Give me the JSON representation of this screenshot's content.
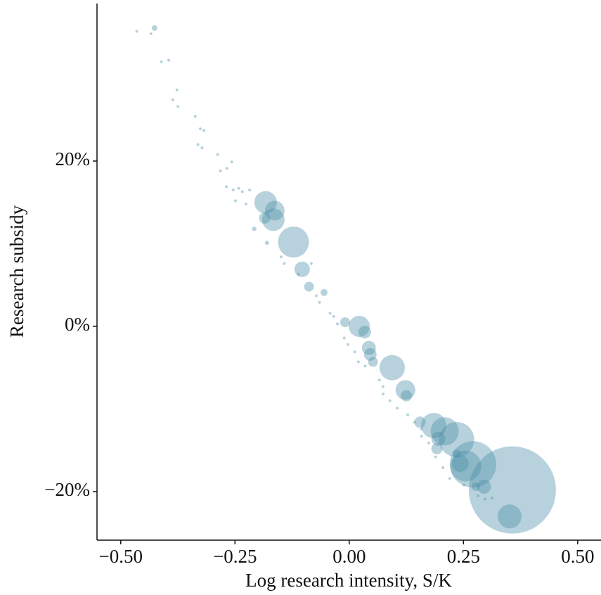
{
  "chart_data": {
    "type": "bubble",
    "x_label": "Log research intensity, S/K",
    "y_label": "Research subsidy",
    "color": "#4a8fa8",
    "opacity": 0.4,
    "grid": false,
    "xlim": [
      -0.552,
      0.551
    ],
    "ylim": [
      -25.87,
      39.06
    ],
    "xticks": [
      {
        "value": -0.5,
        "label": "−0.50"
      },
      {
        "value": -0.25,
        "label": "−0.25"
      },
      {
        "value": 0,
        "label": "0.00"
      },
      {
        "value": 0.25,
        "label": "0.25"
      },
      {
        "value": 0.5,
        "label": "0.50"
      }
    ],
    "yticks": [
      {
        "value": -20,
        "label": "−20%"
      },
      {
        "value": 0,
        "label": "0%"
      },
      {
        "value": 20,
        "label": "20%"
      }
    ],
    "x": [
      0.357,
      0.351,
      0.271,
      0.255,
      0.235,
      0.209,
      0.185,
      0.295,
      0.123,
      0.125,
      0.094,
      0.022,
      0.034,
      0.043,
      0.046,
      0.052,
      -0.009,
      -0.122,
      -0.183,
      -0.163,
      -0.166,
      -0.185,
      -0.103,
      -0.088,
      -0.055,
      0.195,
      0.192,
      0.243,
      0.277,
      0.235,
      0.155,
      -0.426,
      -0.465,
      -0.434,
      -0.411,
      -0.395,
      -0.377,
      -0.386,
      -0.375,
      -0.337,
      -0.326,
      -0.318,
      -0.331,
      -0.322,
      -0.288,
      -0.257,
      -0.268,
      -0.282,
      -0.269,
      -0.254,
      -0.242,
      -0.234,
      -0.218,
      -0.249,
      -0.226,
      -0.208,
      -0.18,
      -0.149,
      -0.142,
      -0.111,
      -0.083,
      -0.072,
      -0.065,
      -0.042,
      -0.026,
      -0.034,
      -0.011,
      -0.003,
      0.012,
      0.02,
      0.035,
      0.066,
      0.074,
      0.089,
      0.105,
      0.128,
      0.143,
      0.158,
      0.174,
      0.189,
      0.205,
      0.22,
      0.251,
      0.282,
      0.297,
      0.312,
      0.074,
      0.158
    ],
    "values": [
      -19.8,
      -23.0,
      -16.7,
      -16.9,
      -13.7,
      -12.7,
      -12.0,
      -19.4,
      -7.7,
      -8.4,
      -5.0,
      0.0,
      -0.7,
      -2.6,
      -3.4,
      -4.3,
      0.5,
      10.2,
      15.0,
      14.0,
      12.9,
      13.1,
      6.9,
      4.8,
      4.1,
      -13.6,
      -14.8,
      -16.6,
      -19.4,
      -15.4,
      -11.6,
      36.1,
      35.7,
      35.4,
      32.0,
      32.2,
      28.6,
      27.4,
      26.6,
      25.4,
      23.9,
      23.7,
      22.0,
      21.6,
      20.8,
      19.9,
      19.1,
      18.8,
      16.9,
      16.5,
      16.7,
      16.3,
      16.5,
      15.2,
      14.8,
      11.8,
      10.1,
      8.4,
      7.6,
      6.3,
      7.6,
      3.7,
      2.9,
      1.6,
      0.3,
      1.2,
      -1.4,
      -2.2,
      -3.1,
      -4.3,
      -4.8,
      -6.5,
      -7.3,
      -9.0,
      -9.9,
      -10.7,
      -11.6,
      -12.4,
      -14.1,
      -15.8,
      -17.1,
      -18.4,
      -19.2,
      -20.5,
      -20.9,
      -20.8,
      -8.2,
      -13.3
    ],
    "sizes": [
      3844,
      289,
      1089,
      484,
      625,
      400,
      324,
      100,
      196,
      64,
      324,
      225,
      81,
      100,
      81,
      49,
      49,
      484,
      256,
      196,
      256,
      64,
      121,
      49,
      25,
      100,
      64,
      144,
      36,
      36,
      64,
      16,
      4,
      4,
      4,
      4,
      4,
      4,
      4,
      4,
      4,
      4,
      4,
      4,
      4,
      4,
      4,
      4,
      4,
      4,
      4,
      4,
      4,
      4,
      4,
      9,
      9,
      4,
      4,
      4,
      4,
      4,
      4,
      4,
      4,
      4,
      4,
      4,
      4,
      4,
      4,
      4,
      4,
      4,
      4,
      4,
      4,
      4,
      4,
      4,
      4,
      4,
      4,
      4,
      4,
      4,
      4,
      4
    ]
  }
}
